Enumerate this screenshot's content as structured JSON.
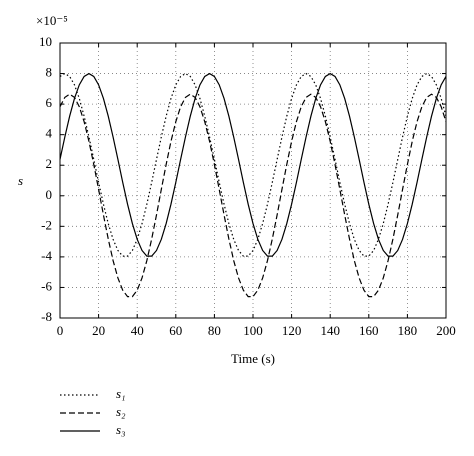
{
  "chart_data": {
    "type": "line",
    "annotation": "×10⁻⁵",
    "y_label": "s",
    "x_label": "Time (s)",
    "xlim": [
      0,
      200
    ],
    "xticks": [
      0,
      20,
      40,
      60,
      80,
      100,
      120,
      140,
      160,
      180,
      200
    ],
    "ylim": [
      -8,
      10
    ],
    "yticks": [
      -8,
      -6,
      -4,
      -2,
      0,
      2,
      4,
      6,
      8,
      10
    ],
    "grid": true,
    "legend": "below-left",
    "x": [
      0,
      2.5,
      5,
      7.5,
      10,
      12.5,
      15,
      17.5,
      20,
      22.5,
      25,
      27.5,
      30,
      32.5,
      35,
      37.5,
      40,
      42.5,
      45,
      47.5,
      50,
      52.5,
      55,
      57.5,
      60,
      62.5,
      65,
      67.5,
      70,
      72.5,
      75,
      77.5,
      80,
      82.5,
      85,
      87.5,
      90,
      92.5,
      95,
      97.5,
      100,
      102.5,
      105,
      107.5,
      110,
      112.5,
      115,
      117.5,
      120,
      122.5,
      125,
      127.5,
      130,
      132.5,
      135,
      137.5,
      140,
      142.5,
      145,
      147.5,
      150,
      152.5,
      155,
      157.5,
      160,
      162.5,
      165,
      167.5,
      170,
      172.5,
      175,
      177.5,
      180,
      182.5,
      185,
      187.5,
      190,
      192.5,
      195,
      197.5,
      200
    ],
    "series": [
      {
        "name": "s₁",
        "color": "#000000",
        "dash": "1.5,2.5",
        "values": [
          7.81,
          8,
          7.81,
          7.26,
          6.37,
          5.21,
          3.85,
          2.38,
          0.88,
          -0.55,
          -1.82,
          -2.85,
          -3.58,
          -3.95,
          -3.95,
          -3.58,
          -2.85,
          -1.82,
          -0.55,
          0.88,
          2.38,
          3.85,
          5.21,
          6.37,
          7.26,
          7.81,
          8,
          7.81,
          7.26,
          6.37,
          5.21,
          3.85,
          2.38,
          0.88,
          -0.55,
          -1.82,
          -2.85,
          -3.58,
          -3.95,
          -3.95,
          -3.58,
          -2.85,
          -1.82,
          -0.55,
          0.88,
          2.38,
          3.85,
          5.21,
          6.37,
          7.26,
          7.81,
          8,
          7.81,
          7.26,
          6.37,
          5.21,
          3.85,
          2.38,
          0.88,
          -0.55,
          -1.82,
          -2.85,
          -3.58,
          -3.95,
          -3.95,
          -3.58,
          -2.85,
          -1.82,
          -0.55,
          0.88,
          2.38,
          3.85,
          5.21,
          6.37,
          7.26,
          7.81,
          8,
          7.81,
          7.26,
          6.37,
          5.21
        ]
      },
      {
        "name": "s₂",
        "color": "#000000",
        "dash": "6,3",
        "values": [
          5.83,
          6.44,
          6.65,
          6.44,
          5.83,
          4.85,
          3.56,
          2.05,
          0.42,
          -1.25,
          -2.83,
          -4.24,
          -5.38,
          -6.18,
          -6.6,
          -6.6,
          -6.18,
          -5.38,
          -4.24,
          -2.83,
          -1.25,
          0.42,
          2.05,
          3.56,
          4.85,
          5.83,
          6.44,
          6.65,
          6.44,
          5.83,
          4.85,
          3.56,
          2.05,
          0.42,
          -1.25,
          -2.83,
          -4.24,
          -5.38,
          -6.18,
          -6.6,
          -6.6,
          -6.18,
          -5.38,
          -4.24,
          -2.83,
          -1.25,
          0.42,
          2.05,
          3.56,
          4.85,
          5.83,
          6.44,
          6.65,
          6.44,
          5.83,
          4.85,
          3.56,
          2.05,
          0.42,
          -1.25,
          -2.83,
          -4.24,
          -5.38,
          -6.18,
          -6.6,
          -6.6,
          -6.18,
          -5.38,
          -4.24,
          -2.83,
          -1.25,
          0.42,
          2.05,
          3.56,
          4.85,
          5.83,
          6.44,
          6.65,
          6.44,
          5.83,
          4.85
        ]
      },
      {
        "name": "s₃",
        "color": "#000000",
        "dash": "none",
        "values": [
          2.38,
          3.85,
          5.21,
          6.37,
          7.26,
          7.81,
          8,
          7.81,
          7.26,
          6.37,
          5.21,
          3.85,
          2.38,
          0.88,
          -0.55,
          -1.82,
          -2.85,
          -3.58,
          -3.95,
          -3.95,
          -3.58,
          -2.85,
          -1.82,
          -0.55,
          0.88,
          2.38,
          3.85,
          5.21,
          6.37,
          7.26,
          7.81,
          8,
          7.81,
          7.26,
          6.37,
          5.21,
          3.85,
          2.38,
          0.88,
          -0.55,
          -1.82,
          -2.85,
          -3.58,
          -3.95,
          -3.95,
          -3.58,
          -2.85,
          -1.82,
          -0.55,
          0.88,
          2.38,
          3.85,
          5.21,
          6.37,
          7.26,
          7.81,
          8,
          7.81,
          7.26,
          6.37,
          5.21,
          3.85,
          2.38,
          0.88,
          -0.55,
          -1.82,
          -2.85,
          -3.58,
          -3.95,
          -3.95,
          -3.58,
          -2.85,
          -1.82,
          -0.55,
          0.88,
          2.38,
          3.85,
          5.21,
          6.37,
          7.26,
          7.81
        ]
      }
    ]
  }
}
